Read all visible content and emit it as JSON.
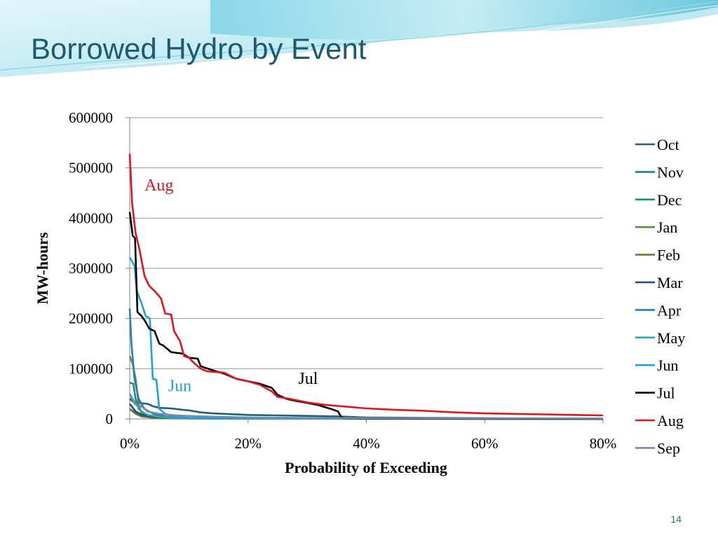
{
  "slide": {
    "title": "Borrowed Hydro by Event",
    "page_number": "14"
  },
  "chart_data": {
    "type": "line",
    "title": "",
    "xlabel": "Probability of Exceeding",
    "ylabel": "MW-hours",
    "xlim": [
      0,
      80
    ],
    "ylim": [
      0,
      600000
    ],
    "x_unit": "%",
    "x_ticks": [
      0,
      20,
      40,
      60,
      80
    ],
    "x_tick_labels": [
      "0%",
      "20%",
      "40%",
      "60%",
      "80%"
    ],
    "y_ticks": [
      0,
      100000,
      200000,
      300000,
      400000,
      500000,
      600000
    ],
    "y_tick_labels": [
      "0",
      "100000",
      "200000",
      "300000",
      "400000",
      "500000",
      "600000"
    ],
    "grid": "horizontal",
    "legend_position": "right",
    "annotations": [
      {
        "text": "Aug",
        "x": 2.5,
        "y": 455000,
        "color": "#e0151b"
      },
      {
        "text": "Jun",
        "x": 6.5,
        "y": 55000,
        "color": "#1aa3dc"
      },
      {
        "text": "Jul",
        "x": 28.5,
        "y": 70000,
        "color": "#000000"
      }
    ],
    "series": [
      {
        "name": "Oct",
        "color": "#1f5f7a",
        "points": [
          [
            0,
            40000
          ],
          [
            0.5,
            35000
          ],
          [
            1.5,
            32000
          ],
          [
            3,
            30000
          ],
          [
            4,
            25000
          ],
          [
            5,
            22000
          ],
          [
            7,
            21000
          ],
          [
            9,
            18000
          ],
          [
            10,
            17000
          ],
          [
            12,
            13000
          ],
          [
            14,
            11000
          ],
          [
            16,
            10000
          ],
          [
            20,
            8000
          ],
          [
            25,
            7000
          ],
          [
            30,
            6000
          ],
          [
            35,
            5000
          ],
          [
            40,
            3000
          ],
          [
            50,
            2000
          ],
          [
            60,
            1500
          ],
          [
            70,
            1000
          ],
          [
            80,
            800
          ]
        ]
      },
      {
        "name": "Nov",
        "color": "#1e7f99",
        "points": [
          [
            0,
            20000
          ],
          [
            1,
            12000
          ],
          [
            2,
            8000
          ],
          [
            3,
            5000
          ],
          [
            5,
            3000
          ],
          [
            8,
            2000
          ],
          [
            15,
            1000
          ],
          [
            30,
            500
          ],
          [
            80,
            0
          ]
        ]
      },
      {
        "name": "Dec",
        "color": "#1b8f73",
        "points": [
          [
            0,
            72000
          ],
          [
            0.6,
            70000
          ],
          [
            1,
            40000
          ],
          [
            1.5,
            20000
          ],
          [
            2.5,
            10000
          ],
          [
            4,
            5000
          ],
          [
            6,
            2000
          ],
          [
            10,
            1000
          ],
          [
            20,
            500
          ],
          [
            80,
            0
          ]
        ]
      },
      {
        "name": "Jan",
        "color": "#5e8a3a",
        "points": [
          [
            0,
            125000
          ],
          [
            0.5,
            110000
          ],
          [
            1,
            80000
          ],
          [
            1.5,
            30000
          ],
          [
            2,
            10000
          ],
          [
            3,
            5000
          ],
          [
            5,
            2000
          ],
          [
            10,
            1000
          ],
          [
            80,
            0
          ]
        ]
      },
      {
        "name": "Feb",
        "color": "#6b7a32",
        "points": [
          [
            0,
            20000
          ],
          [
            1,
            10000
          ],
          [
            2,
            5000
          ],
          [
            4,
            2000
          ],
          [
            8,
            1000
          ],
          [
            80,
            0
          ]
        ]
      },
      {
        "name": "Mar",
        "color": "#1c4f80",
        "points": [
          [
            0,
            30000
          ],
          [
            1,
            15000
          ],
          [
            2,
            8000
          ],
          [
            4,
            4000
          ],
          [
            8,
            2000
          ],
          [
            20,
            1000
          ],
          [
            80,
            0
          ]
        ]
      },
      {
        "name": "Apr",
        "color": "#2a7db5",
        "points": [
          [
            0,
            220000
          ],
          [
            0.3,
            150000
          ],
          [
            0.8,
            80000
          ],
          [
            1.5,
            40000
          ],
          [
            2.5,
            20000
          ],
          [
            4,
            10000
          ],
          [
            6,
            5000
          ],
          [
            10,
            2000
          ],
          [
            20,
            1000
          ],
          [
            80,
            0
          ]
        ]
      },
      {
        "name": "May",
        "color": "#2aa6b8",
        "points": [
          [
            0,
            50000
          ],
          [
            1,
            30000
          ],
          [
            2,
            15000
          ],
          [
            3,
            8000
          ],
          [
            5,
            4000
          ],
          [
            8,
            2000
          ],
          [
            15,
            1000
          ],
          [
            80,
            0
          ]
        ]
      },
      {
        "name": "Jun",
        "color": "#1aa3dc",
        "points": [
          [
            0,
            322000
          ],
          [
            0.8,
            305000
          ],
          [
            1.2,
            255000
          ],
          [
            2,
            230000
          ],
          [
            2.7,
            205000
          ],
          [
            3.4,
            200000
          ],
          [
            3.9,
            80000
          ],
          [
            4.5,
            78000
          ],
          [
            5,
            20000
          ],
          [
            6,
            10000
          ],
          [
            8,
            3000
          ],
          [
            10,
            1000
          ],
          [
            80,
            0
          ]
        ]
      },
      {
        "name": "Jul",
        "color": "#000000",
        "points": [
          [
            0,
            412000
          ],
          [
            0.5,
            365000
          ],
          [
            0.9,
            360000
          ],
          [
            1.3,
            213000
          ],
          [
            2,
            205000
          ],
          [
            2.6,
            195000
          ],
          [
            3.3,
            180000
          ],
          [
            4.2,
            175000
          ],
          [
            5,
            150000
          ],
          [
            5.7,
            146000
          ],
          [
            7,
            133000
          ],
          [
            9,
            130000
          ],
          [
            10,
            122000
          ],
          [
            11.5,
            120000
          ],
          [
            12,
            105000
          ],
          [
            14,
            97000
          ],
          [
            16,
            90000
          ],
          [
            18,
            80000
          ],
          [
            20,
            75000
          ],
          [
            22,
            70000
          ],
          [
            24,
            62000
          ],
          [
            25,
            48000
          ],
          [
            26.5,
            40000
          ],
          [
            28,
            36000
          ],
          [
            30,
            32000
          ],
          [
            32,
            27000
          ],
          [
            34,
            20000
          ],
          [
            35.2,
            15000
          ],
          [
            35.7,
            5000
          ],
          [
            36,
            1500
          ],
          [
            40,
            500
          ],
          [
            80,
            0
          ]
        ]
      },
      {
        "name": "Aug",
        "color": "#e0151b",
        "points": [
          [
            0,
            528000
          ],
          [
            0.4,
            430000
          ],
          [
            1,
            370000
          ],
          [
            1.6,
            340000
          ],
          [
            2.5,
            285000
          ],
          [
            3.3,
            265000
          ],
          [
            4.2,
            255000
          ],
          [
            5.3,
            240000
          ],
          [
            6,
            210000
          ],
          [
            7,
            208000
          ],
          [
            7.5,
            175000
          ],
          [
            8.5,
            155000
          ],
          [
            9.2,
            125000
          ],
          [
            10,
            122000
          ],
          [
            11,
            110000
          ],
          [
            12,
            100000
          ],
          [
            13,
            95000
          ],
          [
            16,
            92000
          ],
          [
            18,
            80000
          ],
          [
            20,
            75000
          ],
          [
            22,
            68000
          ],
          [
            24,
            55000
          ],
          [
            25,
            44000
          ],
          [
            27,
            40000
          ],
          [
            30,
            33000
          ],
          [
            33,
            28000
          ],
          [
            36,
            25000
          ],
          [
            40,
            21000
          ],
          [
            45,
            18000
          ],
          [
            50,
            16000
          ],
          [
            55,
            13000
          ],
          [
            60,
            11000
          ],
          [
            65,
            10000
          ],
          [
            70,
            9000
          ],
          [
            75,
            8000
          ],
          [
            80,
            7000
          ]
        ]
      },
      {
        "name": "Sep",
        "color": "#7a8aa6",
        "points": [
          [
            0,
            50000
          ],
          [
            0.8,
            30000
          ],
          [
            2,
            25000
          ],
          [
            3,
            15000
          ],
          [
            5,
            10000
          ],
          [
            8,
            7000
          ],
          [
            12,
            5000
          ],
          [
            20,
            3000
          ],
          [
            30,
            2000
          ],
          [
            40,
            1500
          ],
          [
            60,
            1000
          ],
          [
            80,
            800
          ]
        ]
      }
    ]
  }
}
